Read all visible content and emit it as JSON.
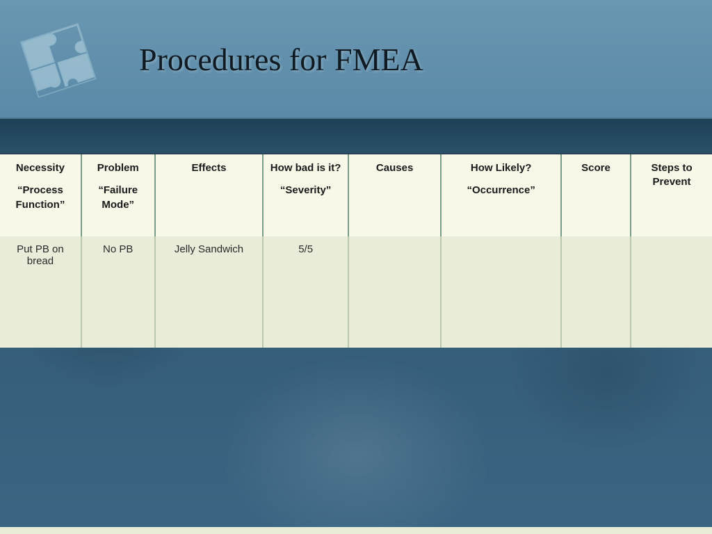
{
  "slide": {
    "title": "Procedures for FMEA",
    "background": {
      "top_gradient": "#6a96b0",
      "bottom_gradient": "#3a6582",
      "divider_bg": "#2a5068"
    }
  },
  "table": {
    "type": "table",
    "header_bg": "#f8f8e8",
    "header_text_color": "#1a1a1a",
    "body_bg": "#e8ecd8",
    "body_text_color": "#2a2a2a",
    "header_border_color": "#7a9a8a",
    "body_border_color": "#bac8b0",
    "header_fontsize": 15,
    "body_fontsize": 15,
    "column_widths_pct": [
      10.5,
      9.5,
      14,
      11,
      12,
      15.5,
      9,
      10.5
    ],
    "columns": [
      {
        "main": "Necessity",
        "sub": "“Process Function”"
      },
      {
        "main": "Problem",
        "sub": "“Failure Mode”"
      },
      {
        "main": "Effects",
        "sub": ""
      },
      {
        "main": "How bad is it?",
        "sub": "“Severity”"
      },
      {
        "main": "Causes",
        "sub": ""
      },
      {
        "main": "How Likely?",
        "sub": "“Occurrence”"
      },
      {
        "main": "Score",
        "sub": ""
      },
      {
        "main": "Steps to Prevent",
        "sub": ""
      }
    ],
    "rows": [
      [
        "Put PB on bread",
        "No PB",
        "Jelly Sandwich",
        "5/5",
        "",
        "",
        "",
        ""
      ]
    ]
  }
}
